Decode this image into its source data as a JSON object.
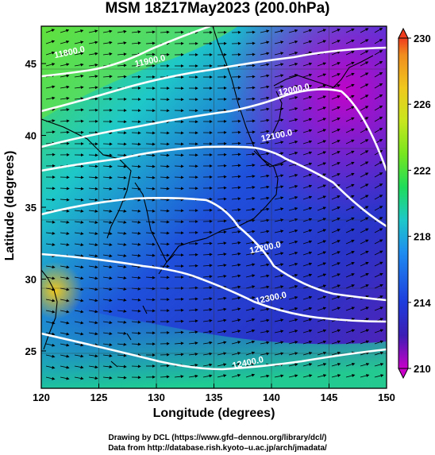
{
  "title": "MSM 18Z17May2023 (200.0hPa)",
  "xaxis": {
    "label": "Longitude (degrees)",
    "range": [
      120,
      150
    ],
    "ticks": [
      120,
      125,
      130,
      135,
      140,
      145,
      150
    ]
  },
  "yaxis": {
    "label": "Latitude  (degrees)",
    "range": [
      22.4,
      47.6
    ],
    "ticks": [
      25,
      30,
      35,
      40,
      45
    ]
  },
  "colorbar": {
    "min": 210,
    "max": 230,
    "ticks": [
      210,
      214,
      218,
      222,
      226,
      230
    ],
    "stops": [
      "#c800c8",
      "#3c1eb4",
      "#1e3cdc",
      "#1e8cf0",
      "#1ec8c8",
      "#1edc5a",
      "#78e61e",
      "#c8e61e",
      "#f0c81e",
      "#f08c1e",
      "#f03c1e"
    ]
  },
  "contours": [
    {
      "label": "11800.0",
      "label_at": [
        122.5,
        45.6
      ]
    },
    {
      "label": "11900.0",
      "label_at": [
        129.5,
        45.0
      ]
    },
    {
      "label": "12000.0",
      "label_at": [
        142.0,
        43.0
      ]
    },
    {
      "label": "12100.0",
      "label_at": [
        140.5,
        39.8
      ]
    },
    {
      "label": "12200.0",
      "label_at": [
        139.5,
        32.0
      ]
    },
    {
      "label": "12300.0",
      "label_at": [
        140.0,
        28.5
      ]
    },
    {
      "label": "12400.0",
      "label_at": [
        138.0,
        24.0
      ]
    }
  ],
  "credits": {
    "line1": "Drawing by DCL (https://www.gfd–dennou.org/library/dcl/)",
    "line2": "Data from http://database.rish.kyoto–u.ac.jp/arch/jmadata/"
  },
  "colors": {
    "contour": "#ffffff",
    "coast": "#000000",
    "vector": "#000000"
  }
}
